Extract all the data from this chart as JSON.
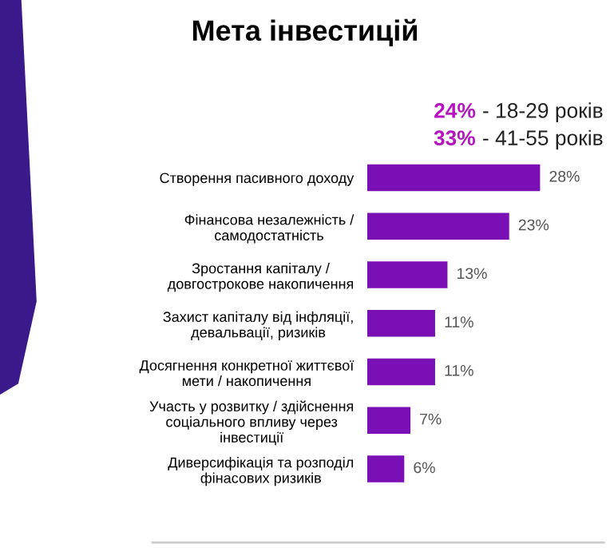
{
  "chart_data": {
    "type": "bar",
    "orientation": "horizontal",
    "title": "Мета інвестицій",
    "categories": [
      "Створення пасивного доходу",
      "Фінансова незалежність /\nсамодостатність",
      "Зростання капіталу /\nдовгострокове накопичення",
      "Захист капіталу від інфляції,\nдевальвації, ризиків",
      "Досягнення конкретної життєвої\nмети / накопичення",
      "Участь у розвитку / здійснення\nсоціального впливу через\nінвестиції",
      "Диверсифікація та розподіл\nфінасових ризиків"
    ],
    "values": [
      28,
      23,
      13,
      11,
      11,
      7,
      6
    ],
    "color": "#7a0fb5",
    "value_labels": [
      "28%",
      "23%",
      "13%",
      "11%",
      "11%",
      "7%",
      "6%"
    ],
    "annotations": [
      "24% - 18-29 років",
      "33% - 41-55 років"
    ],
    "grid": false,
    "legend": false
  }
}
